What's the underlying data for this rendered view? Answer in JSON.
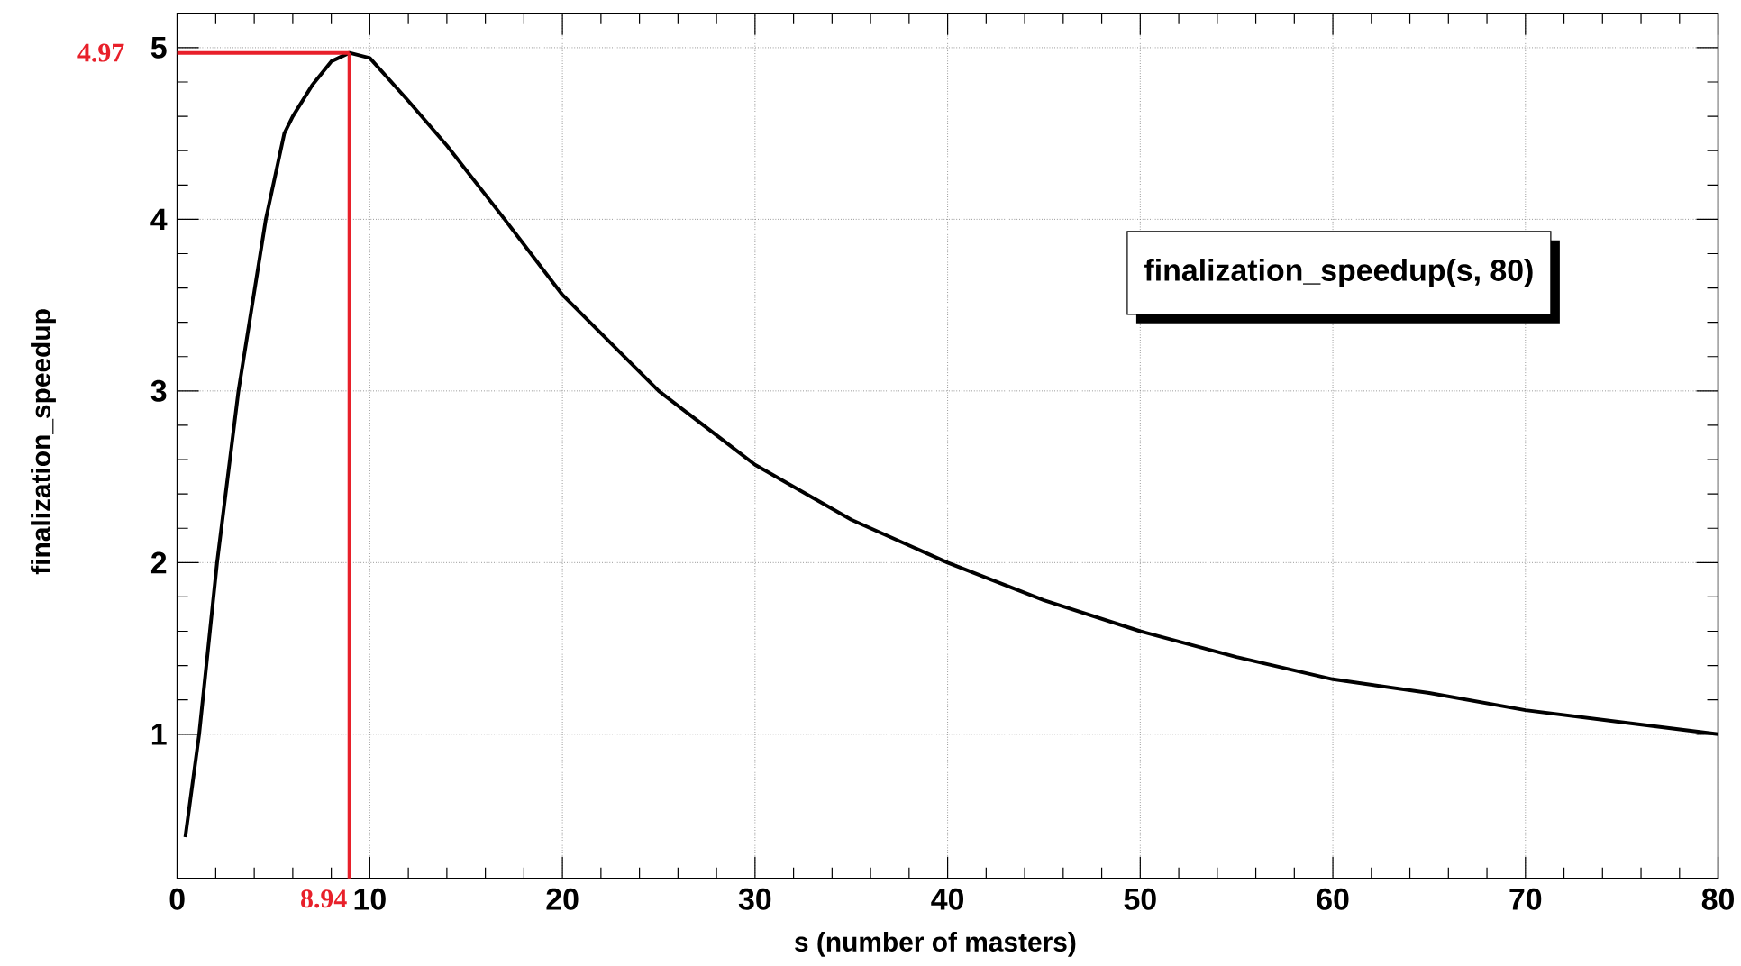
{
  "chart_data": {
    "type": "line",
    "title": "finalization_speedup(s, 80)",
    "xlabel": "s (number of masters)",
    "ylabel": "finalization_speedup",
    "series": [
      {
        "color": "#000000",
        "x": [
          0.42,
          1.14,
          2.07,
          3.18,
          4.6,
          5.56,
          6,
          7,
          8,
          8.94,
          10,
          12,
          14,
          17,
          20,
          25,
          30,
          35,
          40,
          45,
          50,
          55,
          60,
          65,
          70,
          75,
          80
        ],
        "values": [
          0.4,
          1,
          2,
          3,
          4,
          4.5,
          4.6,
          4.78,
          4.92,
          4.97,
          4.94,
          4.69,
          4.43,
          4.0,
          3.56,
          3.0,
          2.57,
          2.25,
          2.0,
          1.78,
          1.6,
          1.45,
          1.32,
          1.24,
          1.14,
          1.07,
          1.0
        ]
      }
    ],
    "xlim": [
      0,
      80
    ],
    "ylim": [
      0.16,
      5.2
    ],
    "xticks": [
      0,
      10,
      20,
      30,
      40,
      50,
      60,
      70,
      80
    ],
    "yticks": [
      1,
      2,
      3,
      4,
      5
    ],
    "grid": true,
    "line_style": "solid",
    "marker": "none",
    "ref_lines": [
      {
        "axis": "x",
        "value": 8.94,
        "label": "8.94",
        "color": "#e8202a"
      },
      {
        "axis": "y",
        "value": 4.97,
        "label": "4.97",
        "color": "#e8202a"
      }
    ]
  }
}
